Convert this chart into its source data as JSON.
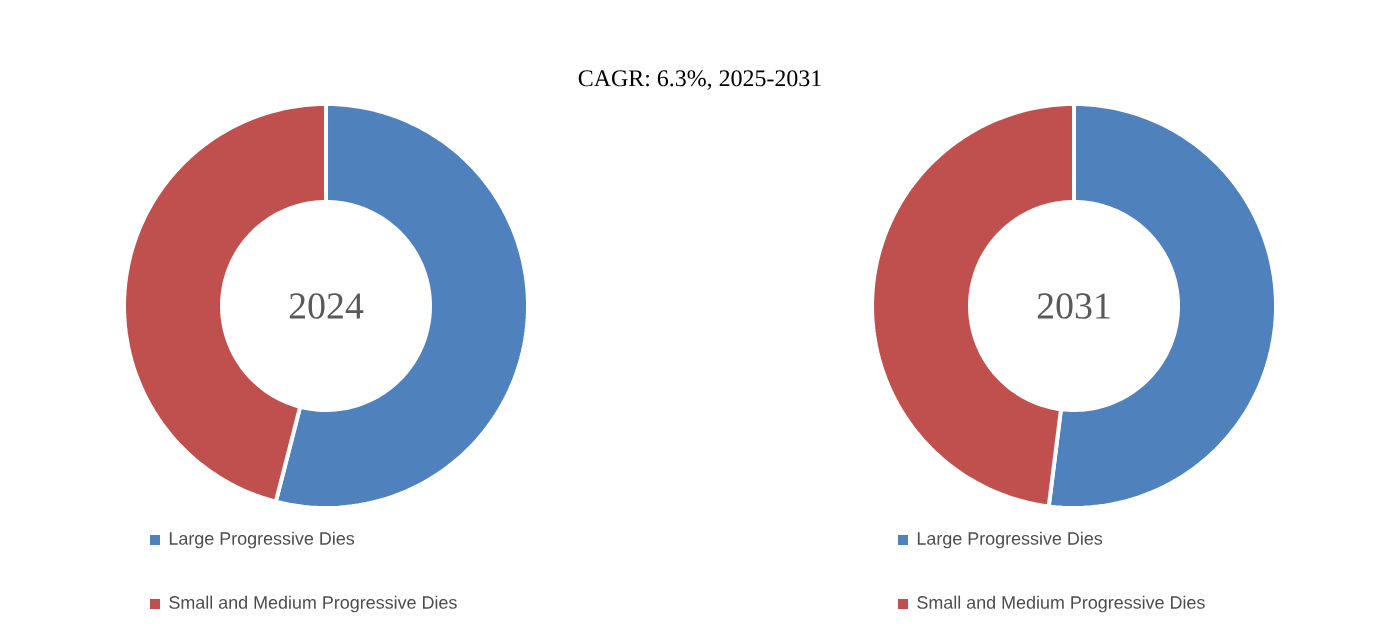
{
  "chart_data": [
    {
      "type": "donut",
      "title": "2024",
      "annotations": [
        "CAGR: 6.3%, 2025-2031"
      ],
      "categories": [
        "Large Progressive Dies",
        "Small and Medium Progressive Dies"
      ],
      "values": [
        54,
        46
      ],
      "colors": [
        "#4f81bd",
        "#c0504d"
      ],
      "legend": "bottom"
    },
    {
      "type": "donut",
      "title": "2031",
      "categories": [
        "Large Progressive Dies",
        "Small and Medium Progressive Dies"
      ],
      "values": [
        52,
        48
      ],
      "colors": [
        "#4f81bd",
        "#c0504d"
      ],
      "legend": "bottom"
    }
  ]
}
